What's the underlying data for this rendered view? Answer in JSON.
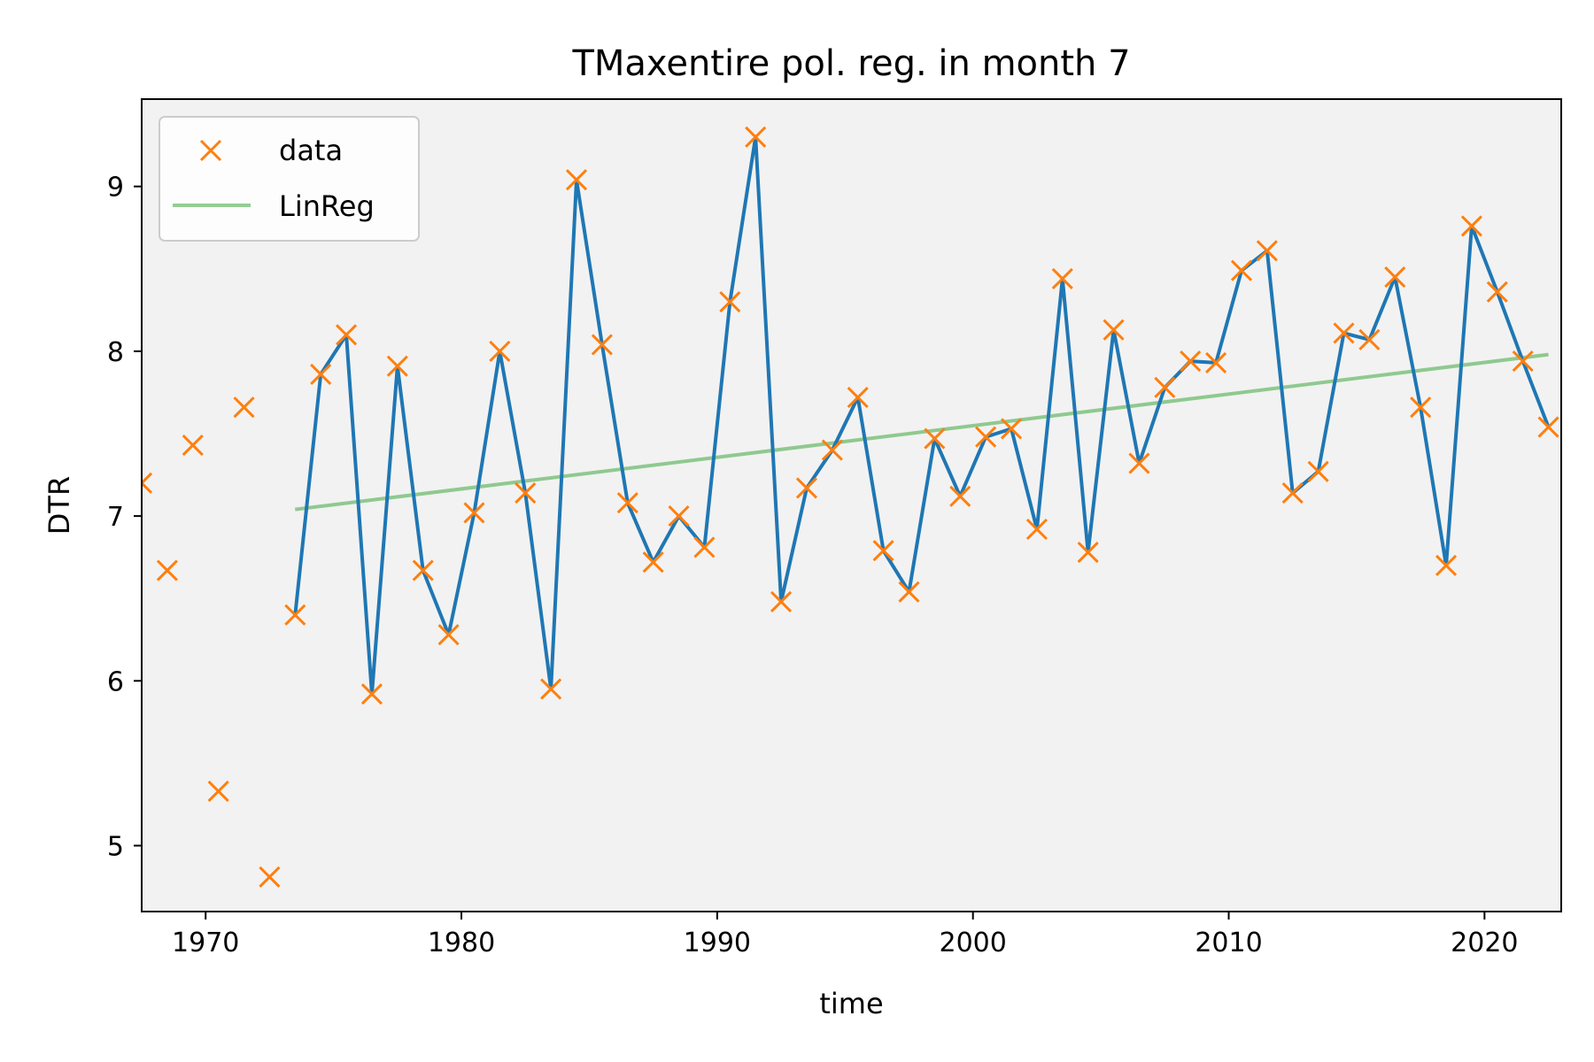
{
  "chart_data": {
    "type": "line",
    "title": "TMaxentire pol. reg. in month 7",
    "xlabel": "time",
    "ylabel": "DTR",
    "xlim": [
      1967.5,
      2023
    ],
    "ylim": [
      4.6,
      9.53
    ],
    "xticks": [
      1970,
      1980,
      1990,
      2000,
      2010,
      2020
    ],
    "yticks": [
      5,
      6,
      7,
      8,
      9
    ],
    "grid": false,
    "legend_position": "top-left",
    "colors": {
      "background": "#f2f2f2",
      "data_markers": "#ff7f0e",
      "smoothed_line": "#1f77b4",
      "linreg": "#2ca02c"
    },
    "series": [
      {
        "name": "data",
        "style": "markers-x",
        "points": [
          [
            1967.5,
            7.2
          ],
          [
            1968.5,
            6.67
          ],
          [
            1969.5,
            7.43
          ],
          [
            1970.5,
            5.33
          ],
          [
            1971.5,
            7.66
          ],
          [
            1972.5,
            4.81
          ],
          [
            1973.5,
            6.4
          ],
          [
            1974.5,
            7.86
          ],
          [
            1975.5,
            8.1
          ],
          [
            1976.5,
            5.92
          ],
          [
            1977.5,
            7.91
          ],
          [
            1978.5,
            6.67
          ],
          [
            1979.5,
            6.28
          ],
          [
            1980.5,
            7.02
          ],
          [
            1981.5,
            8.0
          ],
          [
            1982.5,
            7.14
          ],
          [
            1983.5,
            5.95
          ],
          [
            1984.5,
            9.04
          ],
          [
            1985.5,
            8.04
          ],
          [
            1986.5,
            7.08
          ],
          [
            1987.5,
            6.72
          ],
          [
            1988.5,
            7.0
          ],
          [
            1989.5,
            6.81
          ],
          [
            1990.5,
            8.3
          ],
          [
            1991.5,
            9.3
          ],
          [
            1992.5,
            6.48
          ],
          [
            1993.5,
            7.17
          ],
          [
            1994.5,
            7.4
          ],
          [
            1995.5,
            7.72
          ],
          [
            1996.5,
            6.79
          ],
          [
            1997.5,
            6.54
          ],
          [
            1998.5,
            7.47
          ],
          [
            1999.5,
            7.12
          ],
          [
            2000.5,
            7.48
          ],
          [
            2001.5,
            7.53
          ],
          [
            2002.5,
            6.92
          ],
          [
            2003.5,
            8.44
          ],
          [
            2004.5,
            6.78
          ],
          [
            2005.5,
            8.13
          ],
          [
            2006.5,
            7.32
          ],
          [
            2007.5,
            7.78
          ],
          [
            2008.5,
            7.94
          ],
          [
            2009.5,
            7.93
          ],
          [
            2010.5,
            8.49
          ],
          [
            2011.5,
            8.61
          ],
          [
            2012.5,
            7.14
          ],
          [
            2013.5,
            7.27
          ],
          [
            2014.5,
            8.11
          ],
          [
            2015.5,
            8.07
          ],
          [
            2016.5,
            8.45
          ],
          [
            2017.5,
            7.66
          ],
          [
            2018.5,
            6.7
          ],
          [
            2019.5,
            8.76
          ],
          [
            2020.5,
            8.36
          ],
          [
            2021.5,
            7.94
          ],
          [
            2022.5,
            7.54
          ]
        ]
      },
      {
        "name": "",
        "style": "line",
        "points": [
          [
            1973.5,
            6.4
          ],
          [
            1974.5,
            7.86
          ],
          [
            1975.5,
            8.1
          ],
          [
            1976.5,
            5.92
          ],
          [
            1977.5,
            7.91
          ],
          [
            1978.5,
            6.67
          ],
          [
            1979.5,
            6.28
          ],
          [
            1980.5,
            7.02
          ],
          [
            1981.5,
            8.0
          ],
          [
            1982.5,
            7.14
          ],
          [
            1983.5,
            5.95
          ],
          [
            1984.5,
            9.04
          ],
          [
            1985.5,
            8.04
          ],
          [
            1986.5,
            7.08
          ],
          [
            1987.5,
            6.72
          ],
          [
            1988.5,
            7.0
          ],
          [
            1989.5,
            6.81
          ],
          [
            1990.5,
            8.3
          ],
          [
            1991.5,
            9.3
          ],
          [
            1992.5,
            6.48
          ],
          [
            1993.5,
            7.17
          ],
          [
            1994.5,
            7.4
          ],
          [
            1995.5,
            7.72
          ],
          [
            1996.5,
            6.79
          ],
          [
            1997.5,
            6.54
          ],
          [
            1998.5,
            7.47
          ],
          [
            1999.5,
            7.12
          ],
          [
            2000.5,
            7.48
          ],
          [
            2001.5,
            7.53
          ],
          [
            2002.5,
            6.92
          ],
          [
            2003.5,
            8.44
          ],
          [
            2004.5,
            6.78
          ],
          [
            2005.5,
            8.13
          ],
          [
            2006.5,
            7.32
          ],
          [
            2007.5,
            7.78
          ],
          [
            2008.5,
            7.94
          ],
          [
            2009.5,
            7.93
          ],
          [
            2010.5,
            8.49
          ],
          [
            2011.5,
            8.61
          ],
          [
            2012.5,
            7.14
          ],
          [
            2013.5,
            7.27
          ],
          [
            2014.5,
            8.11
          ],
          [
            2015.5,
            8.07
          ],
          [
            2016.5,
            8.45
          ],
          [
            2017.5,
            7.66
          ],
          [
            2018.5,
            6.7
          ],
          [
            2019.5,
            8.76
          ],
          [
            2020.5,
            8.36
          ],
          [
            2021.5,
            7.94
          ],
          [
            2022.5,
            7.54
          ]
        ]
      },
      {
        "name": "LinReg",
        "style": "line",
        "points": [
          [
            1973.5,
            7.04
          ],
          [
            2022.5,
            7.98
          ]
        ]
      }
    ]
  }
}
